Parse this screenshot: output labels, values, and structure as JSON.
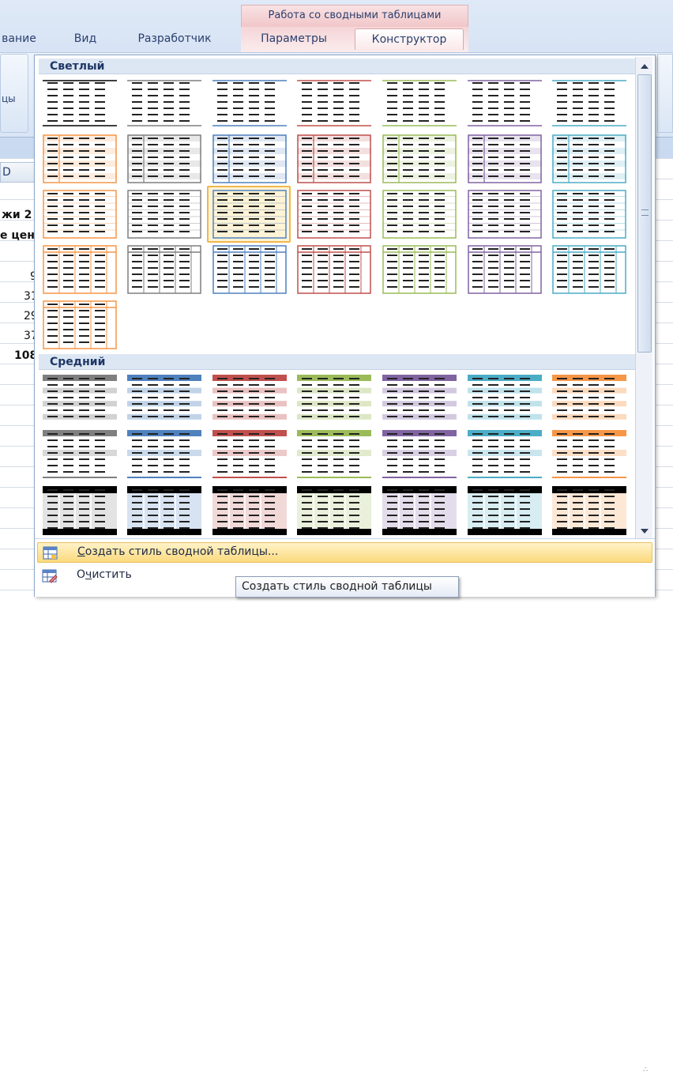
{
  "ribbon": {
    "context_title": "Работа со сводными таблицами",
    "tabs": [
      "вание",
      "Вид",
      "Разработчик",
      "Параметры",
      "Конструктор"
    ],
    "active_tab": "Конструктор",
    "left_group_text": "цы"
  },
  "sheet": {
    "column_header": "D",
    "cells": [
      "жи 2",
      "е цен",
      "9",
      "31",
      "29",
      "37",
      "108"
    ]
  },
  "gallery": {
    "group_light": "Светлый",
    "group_medium": "Средний",
    "selected_style": "light row 3, column 3",
    "light_colors": [
      "#000000",
      "#7f7f7f",
      "#4f81bd",
      "#c0504d",
      "#9bbb59",
      "#8064a2",
      "#4bacc6",
      "#f79646"
    ],
    "medium_colors": [
      "#7f7f7f",
      "#4f81bd",
      "#c0504d",
      "#9bbb59",
      "#8064a2",
      "#4bacc6",
      "#f79646"
    ]
  },
  "menu": {
    "create_label": "Создать стиль сводной таблицы...",
    "create_mnemonic": "С",
    "clear_label": "Очистить",
    "clear_mnemonic": "ч",
    "create_icon": "pivot-style-new-icon",
    "clear_icon": "pivot-style-clear-icon"
  },
  "tooltip": {
    "text": "Создать стиль сводной таблицы"
  }
}
